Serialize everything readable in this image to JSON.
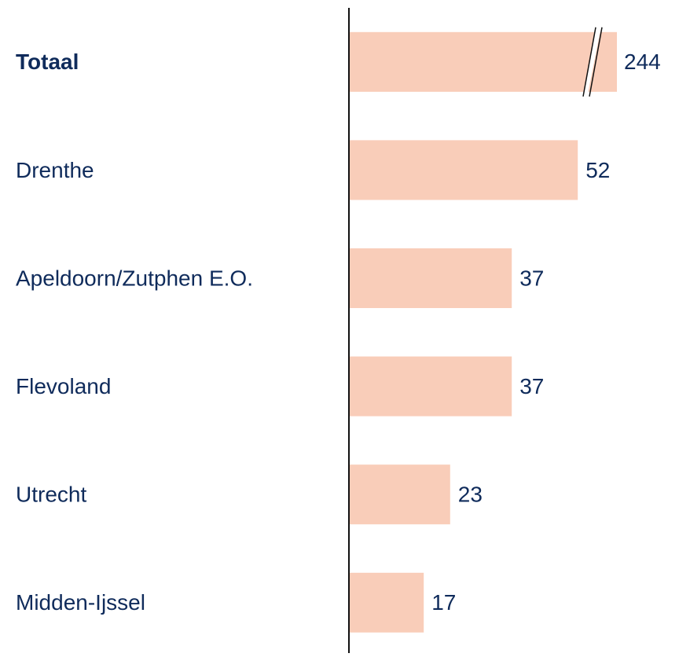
{
  "chart_data": {
    "type": "barh",
    "categories": [
      "Totaal",
      "Drenthe",
      "Apeldoorn/Zutphen E.O.",
      "Flevoland",
      "Utrecht",
      "Midden-Ijssel"
    ],
    "values": [
      244,
      52,
      37,
      37,
      23,
      17
    ],
    "color": "#f9cdb9"
  }
}
